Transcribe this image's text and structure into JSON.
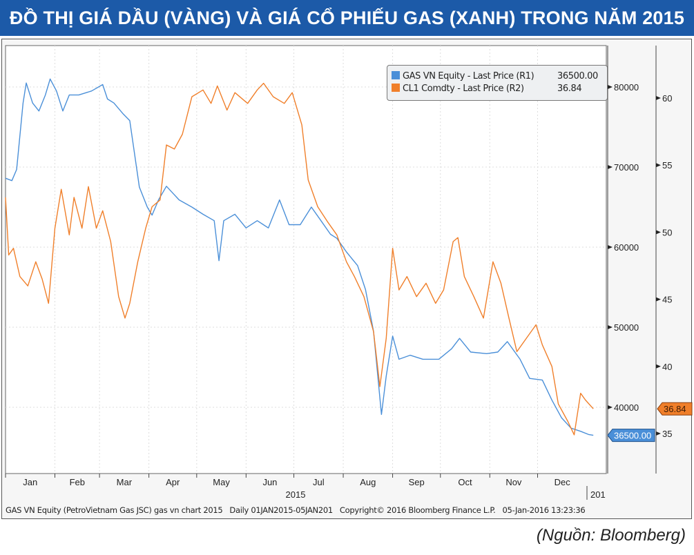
{
  "title": "ĐỒ THỊ GIÁ DẦU (VÀNG) VÀ GIÁ CỔ PHIẾU GAS (XANH) TRONG NĂM 2015",
  "source": "(Nguồn: Bloomberg)",
  "footer": {
    "security": "GAS VN Equity (PetroVietnam Gas JSC) gas vn chart 2015",
    "range": "Daily 01JAN2015-05JAN201",
    "copyright": "Copyright© 2016 Bloomberg Finance L.P.",
    "timestamp": "05-Jan-2016 13:23:36"
  },
  "chart_data": {
    "type": "line",
    "x_range": [
      "2015-01-01",
      "2016-01-05"
    ],
    "x_tick_labels": [
      "Jan",
      "Feb",
      "Mar",
      "Apr",
      "May",
      "Jun",
      "Jul",
      "Aug",
      "Sep",
      "Oct",
      "Nov",
      "Dec"
    ],
    "x_year_labels": [
      "2015",
      "201"
    ],
    "grid": true,
    "legend_placement": "top-right",
    "axes": {
      "R1": {
        "ylim": [
          33000,
          85000
        ],
        "ticks": [
          40000,
          50000,
          60000,
          70000,
          80000
        ],
        "tick_labels": [
          "40000",
          "50000",
          "60000",
          "70000",
          "80000"
        ]
      },
      "R2": {
        "ylim": [
          31.5,
          62.5
        ],
        "ticks": [
          35,
          40,
          45,
          50,
          55,
          60
        ],
        "tick_labels": [
          "35",
          "40",
          "45",
          "50",
          "55",
          "60"
        ]
      }
    },
    "series": [
      {
        "name": "GAS VN Equity - Last Price (R1)",
        "last_value": "36500.00",
        "axis": "R1",
        "color": "#4a8fd8",
        "points": [
          [
            "2015-01-01",
            68600
          ],
          [
            "2015-01-05",
            68300
          ],
          [
            "2015-01-08",
            69700
          ],
          [
            "2015-01-12",
            78000
          ],
          [
            "2015-01-14",
            80500
          ],
          [
            "2015-01-18",
            78000
          ],
          [
            "2015-01-22",
            77000
          ],
          [
            "2015-01-26",
            79000
          ],
          [
            "2015-01-29",
            81000
          ],
          [
            "2015-02-02",
            79500
          ],
          [
            "2015-02-06",
            77000
          ],
          [
            "2015-02-10",
            79000
          ],
          [
            "2015-02-16",
            79000
          ],
          [
            "2015-02-24",
            79500
          ],
          [
            "2015-03-03",
            80300
          ],
          [
            "2015-03-06",
            78500
          ],
          [
            "2015-03-10",
            78000
          ],
          [
            "2015-03-16",
            76600
          ],
          [
            "2015-03-20",
            75800
          ],
          [
            "2015-03-26",
            67500
          ],
          [
            "2015-03-31",
            65000
          ],
          [
            "2015-04-03",
            64000
          ],
          [
            "2015-04-07",
            65900
          ],
          [
            "2015-04-12",
            67600
          ],
          [
            "2015-04-20",
            65900
          ],
          [
            "2015-04-28",
            65000
          ],
          [
            "2015-05-05",
            64100
          ],
          [
            "2015-05-12",
            63300
          ],
          [
            "2015-05-15",
            58300
          ],
          [
            "2015-05-18",
            63300
          ],
          [
            "2015-05-25",
            64100
          ],
          [
            "2015-06-01",
            62400
          ],
          [
            "2015-06-08",
            63300
          ],
          [
            "2015-06-15",
            62400
          ],
          [
            "2015-06-22",
            65900
          ],
          [
            "2015-06-28",
            62800
          ],
          [
            "2015-07-05",
            62800
          ],
          [
            "2015-07-12",
            65000
          ],
          [
            "2015-07-18",
            63300
          ],
          [
            "2015-07-24",
            61600
          ],
          [
            "2015-07-28",
            61100
          ],
          [
            "2015-08-03",
            59400
          ],
          [
            "2015-08-10",
            57700
          ],
          [
            "2015-08-15",
            54700
          ],
          [
            "2015-08-20",
            49500
          ],
          [
            "2015-08-25",
            39100
          ],
          [
            "2015-08-28",
            43900
          ],
          [
            "2015-09-01",
            48900
          ],
          [
            "2015-09-05",
            46000
          ],
          [
            "2015-09-12",
            46500
          ],
          [
            "2015-09-20",
            46000
          ],
          [
            "2015-09-30",
            46000
          ],
          [
            "2015-10-08",
            47300
          ],
          [
            "2015-10-13",
            48600
          ],
          [
            "2015-10-20",
            46900
          ],
          [
            "2015-10-30",
            46700
          ],
          [
            "2015-11-06",
            46900
          ],
          [
            "2015-11-12",
            48200
          ],
          [
            "2015-11-20",
            46000
          ],
          [
            "2015-11-26",
            43600
          ],
          [
            "2015-12-04",
            43400
          ],
          [
            "2015-12-10",
            40900
          ],
          [
            "2015-12-16",
            38700
          ],
          [
            "2015-12-22",
            37400
          ],
          [
            "2015-12-28",
            37000
          ],
          [
            "2016-01-02",
            36600
          ],
          [
            "2016-01-05",
            36500
          ]
        ]
      },
      {
        "name": "CL1 Comdty - Last Price (R2)",
        "last_value": "36.84",
        "axis": "R2",
        "color": "#f07f2a",
        "points": [
          [
            "2015-01-01",
            52.6
          ],
          [
            "2015-01-03",
            48.3
          ],
          [
            "2015-01-06",
            48.8
          ],
          [
            "2015-01-10",
            46.7
          ],
          [
            "2015-01-15",
            46.0
          ],
          [
            "2015-01-20",
            47.8
          ],
          [
            "2015-01-24",
            46.5
          ],
          [
            "2015-01-28",
            44.7
          ],
          [
            "2015-02-01",
            50.3
          ],
          [
            "2015-02-05",
            53.2
          ],
          [
            "2015-02-10",
            49.8
          ],
          [
            "2015-02-13",
            52.6
          ],
          [
            "2015-02-18",
            50.3
          ],
          [
            "2015-02-22",
            53.4
          ],
          [
            "2015-02-27",
            50.3
          ],
          [
            "2015-03-03",
            51.6
          ],
          [
            "2015-03-08",
            49.3
          ],
          [
            "2015-03-13",
            45.2
          ],
          [
            "2015-03-17",
            43.6
          ],
          [
            "2015-03-20",
            44.7
          ],
          [
            "2015-03-25",
            47.8
          ],
          [
            "2015-03-30",
            50.3
          ],
          [
            "2015-04-03",
            51.9
          ],
          [
            "2015-04-08",
            52.4
          ],
          [
            "2015-04-12",
            56.5
          ],
          [
            "2015-04-17",
            56.2
          ],
          [
            "2015-04-22",
            57.3
          ],
          [
            "2015-04-28",
            60.1
          ],
          [
            "2015-05-05",
            60.6
          ],
          [
            "2015-05-10",
            59.6
          ],
          [
            "2015-05-14",
            60.9
          ],
          [
            "2015-05-20",
            59.1
          ],
          [
            "2015-05-25",
            60.4
          ],
          [
            "2015-06-02",
            59.6
          ],
          [
            "2015-06-08",
            60.6
          ],
          [
            "2015-06-12",
            61.1
          ],
          [
            "2015-06-18",
            60.1
          ],
          [
            "2015-06-25",
            59.6
          ],
          [
            "2015-06-30",
            60.4
          ],
          [
            "2015-07-06",
            58.0
          ],
          [
            "2015-07-10",
            53.9
          ],
          [
            "2015-07-16",
            51.9
          ],
          [
            "2015-07-22",
            50.8
          ],
          [
            "2015-07-28",
            49.8
          ],
          [
            "2015-08-03",
            47.8
          ],
          [
            "2015-08-08",
            46.7
          ],
          [
            "2015-08-14",
            45.2
          ],
          [
            "2015-08-20",
            42.6
          ],
          [
            "2015-08-24",
            38.5
          ],
          [
            "2015-08-28",
            42.1
          ],
          [
            "2015-09-01",
            48.8
          ],
          [
            "2015-09-05",
            45.7
          ],
          [
            "2015-09-10",
            46.7
          ],
          [
            "2015-09-16",
            45.2
          ],
          [
            "2015-09-22",
            46.2
          ],
          [
            "2015-09-28",
            44.7
          ],
          [
            "2015-10-03",
            45.7
          ],
          [
            "2015-10-09",
            49.3
          ],
          [
            "2015-10-12",
            49.6
          ],
          [
            "2015-10-16",
            46.7
          ],
          [
            "2015-10-22",
            45.2
          ],
          [
            "2015-10-28",
            43.6
          ],
          [
            "2015-11-03",
            47.8
          ],
          [
            "2015-11-08",
            46.2
          ],
          [
            "2015-11-13",
            43.6
          ],
          [
            "2015-11-18",
            41.1
          ],
          [
            "2015-11-24",
            42.1
          ],
          [
            "2015-11-30",
            43.1
          ],
          [
            "2015-12-04",
            41.6
          ],
          [
            "2015-12-10",
            40.0
          ],
          [
            "2015-12-14",
            37.2
          ],
          [
            "2015-12-20",
            35.9
          ],
          [
            "2015-12-24",
            34.9
          ],
          [
            "2015-12-28",
            38.0
          ],
          [
            "2015-12-31",
            37.5
          ],
          [
            "2016-01-05",
            36.84
          ]
        ]
      }
    ]
  }
}
